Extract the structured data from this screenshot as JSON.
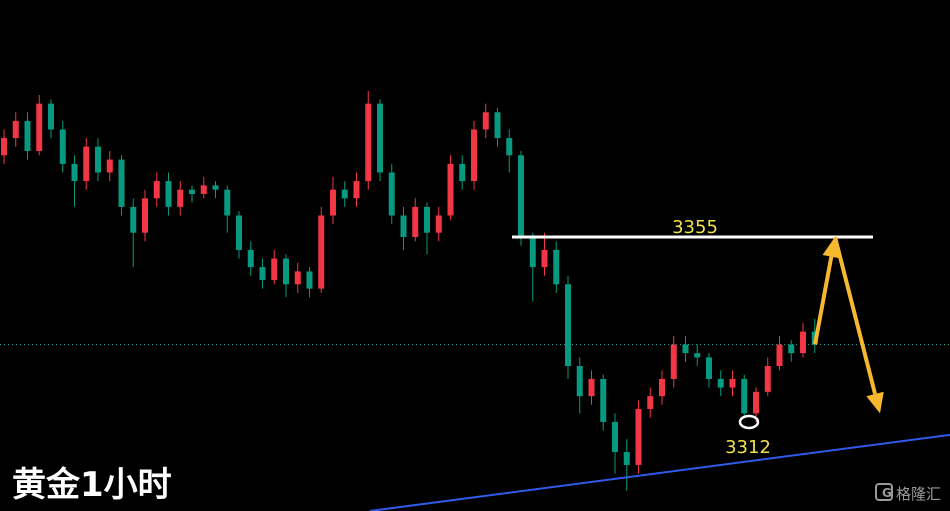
{
  "chart_data": {
    "type": "candlestick",
    "title": "黄金1小时",
    "watermark": "格隆汇",
    "up_color": "#f23645",
    "down_color": "#089981",
    "ylim": [
      3291.3,
      3410.1
    ],
    "candles": [
      [
        3374,
        3380,
        3372,
        3378
      ],
      [
        3378,
        3384,
        3376,
        3382
      ],
      [
        3382,
        3384,
        3373,
        3375
      ],
      [
        3375,
        3388,
        3374,
        3386
      ],
      [
        3386,
        3387,
        3378,
        3380
      ],
      [
        3380,
        3382,
        3370,
        3372
      ],
      [
        3372,
        3374,
        3362,
        3368
      ],
      [
        3368,
        3378,
        3366,
        3376
      ],
      [
        3376,
        3378,
        3368,
        3370
      ],
      [
        3370,
        3375,
        3368,
        3373
      ],
      [
        3373,
        3374,
        3360,
        3362
      ],
      [
        3362,
        3364,
        3348,
        3356
      ],
      [
        3356,
        3366,
        3354,
        3364
      ],
      [
        3364,
        3370,
        3362,
        3368
      ],
      [
        3368,
        3370,
        3360,
        3362
      ],
      [
        3362,
        3368,
        3360,
        3366
      ],
      [
        3366,
        3367,
        3363,
        3365
      ],
      [
        3365,
        3369,
        3364,
        3367
      ],
      [
        3367,
        3368,
        3364,
        3366
      ],
      [
        3366,
        3367,
        3356,
        3360
      ],
      [
        3360,
        3361,
        3350,
        3352
      ],
      [
        3352,
        3354,
        3346,
        3348
      ],
      [
        3348,
        3350,
        3343,
        3345
      ],
      [
        3345,
        3352,
        3344,
        3350
      ],
      [
        3350,
        3351,
        3341,
        3344
      ],
      [
        3344,
        3349,
        3342,
        3347
      ],
      [
        3347,
        3348,
        3341,
        3343
      ],
      [
        3343,
        3362,
        3342,
        3360
      ],
      [
        3360,
        3369,
        3358,
        3366
      ],
      [
        3366,
        3368,
        3362,
        3364
      ],
      [
        3364,
        3370,
        3362,
        3368
      ],
      [
        3368,
        3389,
        3366,
        3386
      ],
      [
        3386,
        3387,
        3368,
        3370
      ],
      [
        3370,
        3372,
        3358,
        3360
      ],
      [
        3360,
        3362,
        3352,
        3355
      ],
      [
        3355,
        3364,
        3354,
        3362
      ],
      [
        3362,
        3363,
        3351,
        3356
      ],
      [
        3356,
        3362,
        3354,
        3360
      ],
      [
        3360,
        3374,
        3359,
        3372
      ],
      [
        3372,
        3374,
        3366,
        3368
      ],
      [
        3368,
        3382,
        3366,
        3380
      ],
      [
        3380,
        3386,
        3378,
        3384
      ],
      [
        3384,
        3385,
        3376,
        3378
      ],
      [
        3378,
        3380,
        3370,
        3374
      ],
      [
        3374,
        3375,
        3353,
        3355
      ],
      [
        3355,
        3356,
        3340,
        3348
      ],
      [
        3348,
        3356,
        3346,
        3352
      ],
      [
        3352,
        3354,
        3342,
        3344
      ],
      [
        3344,
        3346,
        3322,
        3325
      ],
      [
        3325,
        3327,
        3314,
        3318
      ],
      [
        3318,
        3324,
        3316,
        3322
      ],
      [
        3322,
        3323,
        3310,
        3312
      ],
      [
        3312,
        3314,
        3300,
        3305
      ],
      [
        3305,
        3308,
        3296,
        3302
      ],
      [
        3302,
        3317,
        3300,
        3315
      ],
      [
        3315,
        3320,
        3313,
        3318
      ],
      [
        3318,
        3324,
        3316,
        3322
      ],
      [
        3322,
        3332,
        3320,
        3330
      ],
      [
        3330,
        3332,
        3326,
        3328
      ],
      [
        3328,
        3330,
        3325,
        3327
      ],
      [
        3327,
        3328,
        3320,
        3322
      ],
      [
        3322,
        3324,
        3318,
        3320
      ],
      [
        3320,
        3324,
        3318,
        3322
      ],
      [
        3322,
        3323,
        3313,
        3314
      ],
      [
        3314,
        3320,
        3312,
        3319
      ],
      [
        3319,
        3327,
        3318,
        3325
      ],
      [
        3325,
        3332,
        3324,
        3330
      ],
      [
        3330,
        3331,
        3326,
        3328
      ],
      [
        3328,
        3335,
        3327,
        3333
      ],
      [
        3333,
        3336,
        3328,
        3330
      ]
    ],
    "resistance": 3355,
    "low_marker": 3312,
    "current_price": 3330,
    "trendline": [
      3291.3,
      3309
    ],
    "trendline_color": "#2f5bea",
    "forecast_path": [
      3330,
      3355,
      3314
    ],
    "forecast_color": "#f5b82e"
  }
}
